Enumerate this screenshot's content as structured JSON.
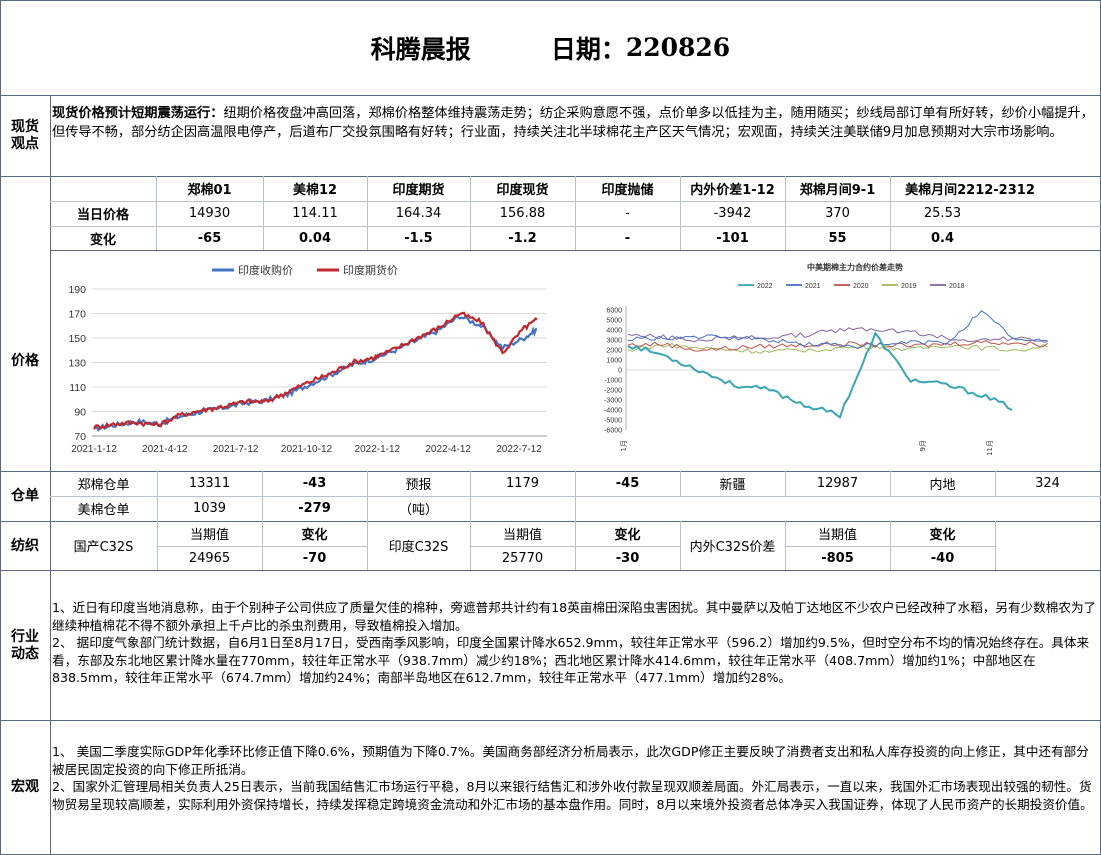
{
  "header": {
    "title": "科腾晨报",
    "date_label": "日期：",
    "date": "220826"
  },
  "spot": {
    "section": "现货观点",
    "headline": "现货价格预计短期震荡运行：",
    "text": "纽期价格夜盘冲高回落，郑棉价格整体维持震荡走势；纺企采购意愿不强，点价单多以低挂为主，随用随买；纱线局部订单有所好转，纱价小幅提升，但传导不畅，部分纺企因高温限电停产，后道布厂交投氛围略有好转；行业面，持续关注北半球棉花主产区天气情况；宏观面，持续关注美联储9月加息预期对大宗市场影响。"
  },
  "price_table": {
    "headers": [
      "郑棉01",
      "美棉12",
      "印度期货",
      "印度现货",
      "印度抛储",
      "内外价差1-12",
      "郑棉月间9-1",
      "美棉月间2212-2312"
    ],
    "rows": [
      {
        "label": "当日价格",
        "values": [
          "14930",
          "114.11",
          "164.34",
          "156.88",
          "-",
          "-3942",
          "370",
          "25.53"
        ]
      },
      {
        "label": "变化",
        "values": [
          "-65",
          "0.04",
          "-1.5",
          "-1.2",
          "-",
          "-101",
          "55",
          "0.4"
        ]
      }
    ]
  },
  "price_section": "价格",
  "chart_data": [
    {
      "type": "line",
      "title": "",
      "legend": "top",
      "series": [
        {
          "name": "印度收购价",
          "color": "#4472c4"
        },
        {
          "name": "印度期货价",
          "color": "#c0282d"
        }
      ],
      "x_tick_labels": [
        "2021-1-12",
        "2021-4-12",
        "2021-7-12",
        "2021-10-12",
        "2022-1-12",
        "2022-4-12",
        "2022-7-12"
      ],
      "ylim": [
        70,
        190
      ],
      "y_ticks": [
        70,
        90,
        110,
        130,
        150,
        170,
        190
      ],
      "grid": "horizontal",
      "points": {
        "x": [
          0,
          1,
          2,
          3,
          4,
          5,
          6,
          7,
          8,
          9,
          10,
          11,
          12,
          13,
          14,
          15,
          16,
          17,
          18,
          19,
          20,
          20.6
        ],
        "y1": [
          76,
          79,
          82,
          80,
          86,
          90,
          93,
          97,
          99,
          104,
          112,
          120,
          128,
          133,
          140,
          148,
          156,
          168,
          160,
          142,
          150,
          157
        ],
        "y2": [
          77,
          80,
          81,
          79,
          87,
          91,
          94,
          98,
          98,
          106,
          114,
          121,
          130,
          134,
          141,
          150,
          158,
          170,
          163,
          138,
          158,
          165
        ]
      }
    },
    {
      "type": "line",
      "title": "中美期棉主力合约价差走势",
      "legend": "top",
      "series": [
        {
          "name": "2022",
          "color": "#3aa6b4"
        },
        {
          "name": "2021",
          "color": "#4472c4"
        },
        {
          "name": "2020",
          "color": "#c0504d"
        },
        {
          "name": "2019",
          "color": "#9bbb59"
        },
        {
          "name": "2018",
          "color": "#8064a2"
        }
      ],
      "x_tick_labels": [
        "1月",
        "9月",
        "11月"
      ],
      "ylim": [
        -6000,
        6000
      ],
      "y_ticks": [
        -6000,
        -5000,
        -4000,
        -3000,
        -2000,
        -1000,
        0,
        1000,
        2000,
        3000,
        4000,
        5000,
        6000
      ],
      "grid": "horizontal",
      "points": {
        "x": [
          0,
          1,
          2,
          3,
          4,
          5,
          6,
          7,
          8,
          9,
          10,
          11,
          12
        ],
        "2022": [
          2500,
          1500,
          0,
          -1500,
          -2000,
          -3500,
          -4500,
          3500,
          -1000,
          -1500,
          -2500,
          -4000,
          null
        ],
        "2021": [
          3000,
          3200,
          3300,
          3200,
          3000,
          2600,
          2500,
          2400,
          2800,
          2700,
          5800,
          3000,
          2800
        ],
        "2020": [
          2500,
          2600,
          2000,
          2200,
          2400,
          2500,
          2600,
          2500,
          2400,
          2600,
          2800,
          2700,
          2500
        ],
        "2019": [
          2000,
          2500,
          2200,
          2000,
          1800,
          2000,
          2200,
          2400,
          2000,
          2500,
          2200,
          2000,
          2600
        ],
        "2018": [
          3500,
          3300,
          3000,
          3200,
          3300,
          3500,
          4000,
          4100,
          3800,
          3200,
          3000,
          3100,
          3000
        ]
      }
    }
  ],
  "warehouse": {
    "section": "仓单",
    "row1": [
      "郑棉仓单",
      "13311",
      "-43",
      "预报",
      "1179",
      "-45",
      "新疆",
      "12987",
      "内地",
      "324"
    ],
    "row2": [
      "美棉仓单",
      "1039",
      "-279",
      "（吨）"
    ]
  },
  "textile": {
    "section": "纺织",
    "domestic_label": "国产C32S",
    "india_label": "印度C32S",
    "spread_label": "内外C32S价差",
    "current_label": "当期值",
    "change_label": "变化",
    "domestic_value": "24965",
    "domestic_change": "-70",
    "india_value": "25770",
    "india_change": "-30",
    "spread_value": "-805",
    "spread_change": "-40"
  },
  "industry": {
    "section": "行业动态",
    "p1": "1、近日有印度当地消息称，由于个别种子公司供应了质量欠佳的棉种，旁遮普邦共计约有18英亩棉田深陷虫害困扰。其中曼萨以及帕丁达地区不少农户已经改种了水稻，另有少数棉农为了继续种植棉花不得不额外承担上千卢比的杀虫剂费用，导致植棉投入增加。",
    "p2": "2、 据印度气象部门统计数据，自6月1日至8月17日，受西南季风影响，印度全国累计降水652.9mm，较往年正常水平（596.2）增加约9.5%，但时空分布不均的情况始终存在。具体来看，东部及东北地区累计降水量在770mm，较往年正常水平（938.7mm）减少约18%；西北地区累计降水414.6mm，较往年正常水平（408.7mm）增加约1%；中部地区在838.5mm，较往年正常水平（674.7mm）增加约24%；南部半岛地区在612.7mm，较往年正常水平（477.1mm）增加约28%。"
  },
  "macro": {
    "section": "宏观",
    "p1": "1、 美国二季度实际GDP年化季环比修正值下降0.6%，预期值为下降0.7%。美国商务部经济分析局表示，此次GDP修正主要反映了消费者支出和私人库存投资的向上修正，其中还有部分被居民固定投资的向下修正所抵消。",
    "p2": "2、国家外汇管理局相关负责人25日表示，当前我国结售汇市场运行平稳，8月以来银行结售汇和涉外收付款呈现双顺差局面。外汇局表示，一直以来，我国外汇市场表现出较强的韧性。货物贸易呈现较高顺差，实际利用外资保持增长，持续发挥稳定跨境资金流动和外汇市场的基本盘作用。同时，8月以来境外投资者总体净买入我国证券，体现了人民币资产的长期投资价值。"
  }
}
